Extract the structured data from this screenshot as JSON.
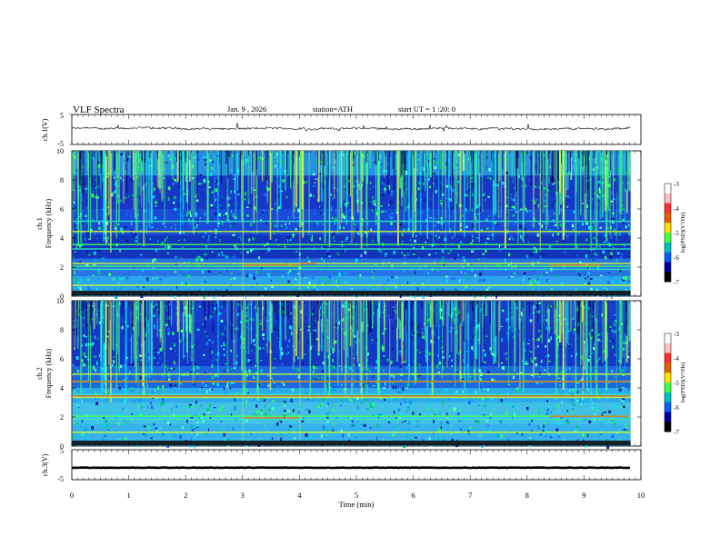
{
  "header": {
    "title": "VLF Spectra",
    "date": "Jan. 9 , 2026",
    "station": "station=ATH",
    "start_ut": "start UT =  1 :20: 0"
  },
  "chart_data": [
    {
      "type": "line",
      "panel": "ch1-waveform",
      "ylabel": "ch.1(V)",
      "ylim": [
        -5,
        5
      ],
      "yticks": [
        "5",
        "-5"
      ],
      "xlim": [
        0,
        10
      ],
      "series": [
        {
          "values_approx_level": 0.3,
          "spread": 0.6
        }
      ]
    },
    {
      "type": "heatmap",
      "panel": "ch1-spectrogram",
      "ylabel": "ch.1\nFrequency (kHz)",
      "ylim": [
        0,
        10
      ],
      "yticks": [
        "0",
        "2",
        "4",
        "6",
        "8",
        "10"
      ],
      "xlim": [
        0,
        10
      ],
      "colorbar": {
        "label": "log(PSD)(V²/Hz)",
        "range": [
          -7,
          -3
        ],
        "ticks": [
          "-3",
          "-4",
          "-5",
          "-6",
          "-7"
        ]
      },
      "bands_khz": [
        0.3,
        0.8,
        1.9,
        2.1,
        2.3,
        3.3,
        3.6,
        4.5,
        5.2
      ]
    },
    {
      "type": "heatmap",
      "panel": "ch2-spectrogram",
      "ylabel": "ch.2\nFrequency (kHz)",
      "ylim": [
        0,
        10
      ],
      "yticks": [
        "0",
        "2",
        "4",
        "6",
        "8",
        "10"
      ],
      "xlim": [
        0,
        10
      ],
      "colorbar": {
        "label": "log(PSD)(V²/Hz)",
        "range": [
          -7,
          -3
        ],
        "ticks": [
          "-3",
          "-4",
          "-5",
          "-6",
          "-7"
        ]
      },
      "bands_khz": [
        0.3,
        1.0,
        1.9,
        2.1,
        3.4,
        3.6,
        4.5,
        5.0
      ]
    },
    {
      "type": "line",
      "panel": "ch3-waveform",
      "ylabel": "ch.3(V)",
      "ylim": [
        -5,
        5
      ],
      "yticks": [
        "5",
        "-5"
      ],
      "xlim": [
        0,
        10
      ],
      "series": [
        {
          "values_approx_level": -1.0,
          "spread": 0.15
        }
      ]
    }
  ],
  "xaxis": {
    "label": "Time (min)",
    "ticks": [
      "0",
      "1",
      "2",
      "3",
      "4",
      "5",
      "6",
      "7",
      "8",
      "9",
      "10"
    ]
  }
}
